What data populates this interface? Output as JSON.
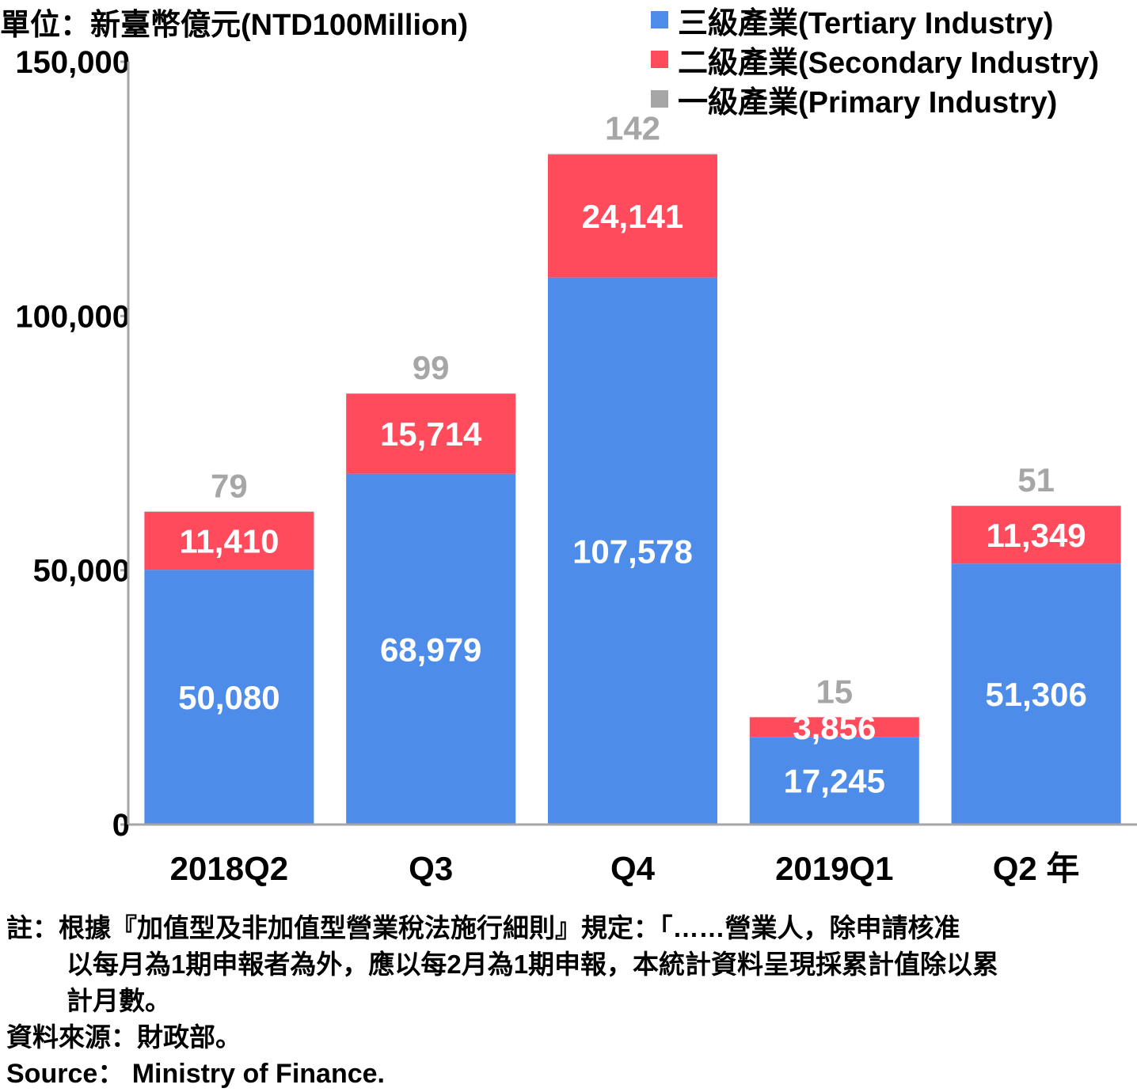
{
  "unit_label": "單位：新臺幣億元(NTD100Million)",
  "colors": {
    "tertiary": "#4e8ce9",
    "secondary": "#ff4b5c",
    "primary": "#a6a6a6",
    "axis": "#a6a6a6"
  },
  "legend": [
    {
      "label": "三級產業(Tertiary Industry)",
      "color": "#4e8ce9"
    },
    {
      "label": "二級產業(Secondary Industry)",
      "color": "#ff4b5c"
    },
    {
      "label": "一級產業(Primary Industry)",
      "color": "#a6a6a6"
    }
  ],
  "chart_data": {
    "type": "bar",
    "stacked": true,
    "categories": [
      "2018Q2",
      "Q3",
      "Q4",
      "2019Q1",
      "Q2 年"
    ],
    "series": [
      {
        "name": "三級產業(Tertiary Industry)",
        "values": [
          50080,
          68979,
          107578,
          17245,
          51306
        ],
        "labels": [
          "50,080",
          "68,979",
          "107,578",
          "17,245",
          "51,306"
        ]
      },
      {
        "name": "二級產業(Secondary Industry)",
        "values": [
          11410,
          15714,
          24141,
          3856,
          11349
        ],
        "labels": [
          "11,410",
          "15,714",
          "24,141",
          "3,856",
          "11,349"
        ]
      },
      {
        "name": "一級產業(Primary Industry)",
        "values": [
          79,
          99,
          142,
          15,
          51
        ],
        "labels": [
          "79",
          "99",
          "142",
          "15",
          "51"
        ]
      }
    ],
    "yticks": [
      0,
      50000,
      100000,
      150000
    ],
    "ytick_labels": [
      "0",
      "50,000",
      "100,000",
      "150,000"
    ],
    "ylim": [
      0,
      150000
    ],
    "grid": false,
    "legend_position": "top-right"
  },
  "notes": {
    "line1": "註：根據『加值型及非加值型營業稅法施行細則』規定：「……營業人，除申請核准",
    "line2": "以每月為1期申報者為外，應以每2月為1期申報，本統計資料呈現採累計值除以累",
    "line3": "計月數。",
    "source_zh": "資料來源：財政部。",
    "source_en": "Source： Ministry of Finance."
  }
}
